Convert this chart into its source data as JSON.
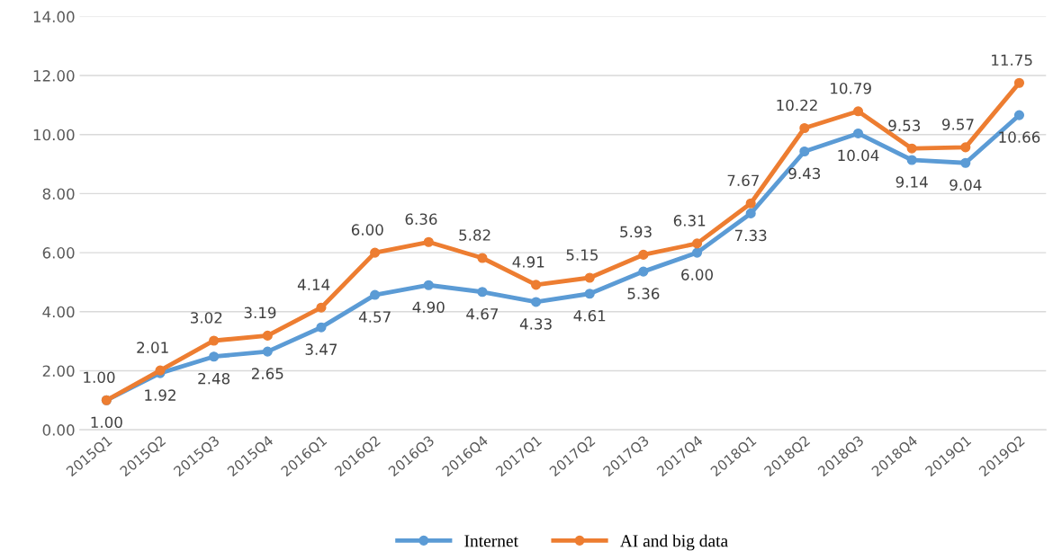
{
  "chart_data": {
    "type": "line",
    "categories": [
      "2015Q1",
      "2015Q2",
      "2015Q3",
      "2015Q4",
      "2016Q1",
      "2016Q2",
      "2016Q3",
      "2016Q4",
      "2017Q1",
      "2017Q2",
      "2017Q3",
      "2017Q4",
      "2018Q1",
      "2018Q2",
      "2018Q3",
      "2018Q4",
      "2019Q1",
      "2019Q2"
    ],
    "series": [
      {
        "name": "Internet",
        "color": "#5b9bd5",
        "values": [
          1.0,
          1.92,
          2.48,
          2.65,
          3.47,
          4.57,
          4.9,
          4.67,
          4.33,
          4.61,
          5.36,
          6.0,
          7.33,
          9.43,
          10.04,
          9.14,
          9.04,
          10.66
        ],
        "value_labels": [
          "1.00",
          "1.92",
          "2.48",
          "2.65",
          "3.47",
          "4.57",
          "4.90",
          "4.67",
          "4.33",
          "4.61",
          "5.36",
          "6.00",
          "7.33",
          "9.43",
          "10.04",
          "9.14",
          "9.04",
          "10.66"
        ]
      },
      {
        "name": "AI and big data",
        "color": "#ed7d31",
        "values": [
          1.0,
          2.01,
          3.02,
          3.19,
          4.14,
          6.0,
          6.36,
          5.82,
          4.91,
          5.15,
          5.93,
          6.31,
          7.67,
          10.22,
          10.79,
          9.53,
          9.57,
          11.75
        ],
        "value_labels": [
          "1.00",
          "2.01",
          "3.02",
          "3.19",
          "4.14",
          "6.00",
          "6.36",
          "5.82",
          "4.91",
          "5.15",
          "5.93",
          "6.31",
          "7.67",
          "10.22",
          "10.79",
          "9.53",
          "9.57",
          "11.75"
        ]
      }
    ],
    "ylim": [
      0,
      14
    ],
    "yticks": [
      {
        "value": 0,
        "label": "0.00"
      },
      {
        "value": 2,
        "label": "2.00"
      },
      {
        "value": 4,
        "label": "4.00"
      },
      {
        "value": 6,
        "label": "6.00"
      },
      {
        "value": 8,
        "label": "8.00"
      },
      {
        "value": 10,
        "label": "10.00"
      },
      {
        "value": 12,
        "label": "12.00"
      },
      {
        "value": 14,
        "label": "14.00"
      }
    ],
    "grid": "y",
    "legend": "bottom",
    "marker": "circle",
    "line_style": "solid"
  }
}
